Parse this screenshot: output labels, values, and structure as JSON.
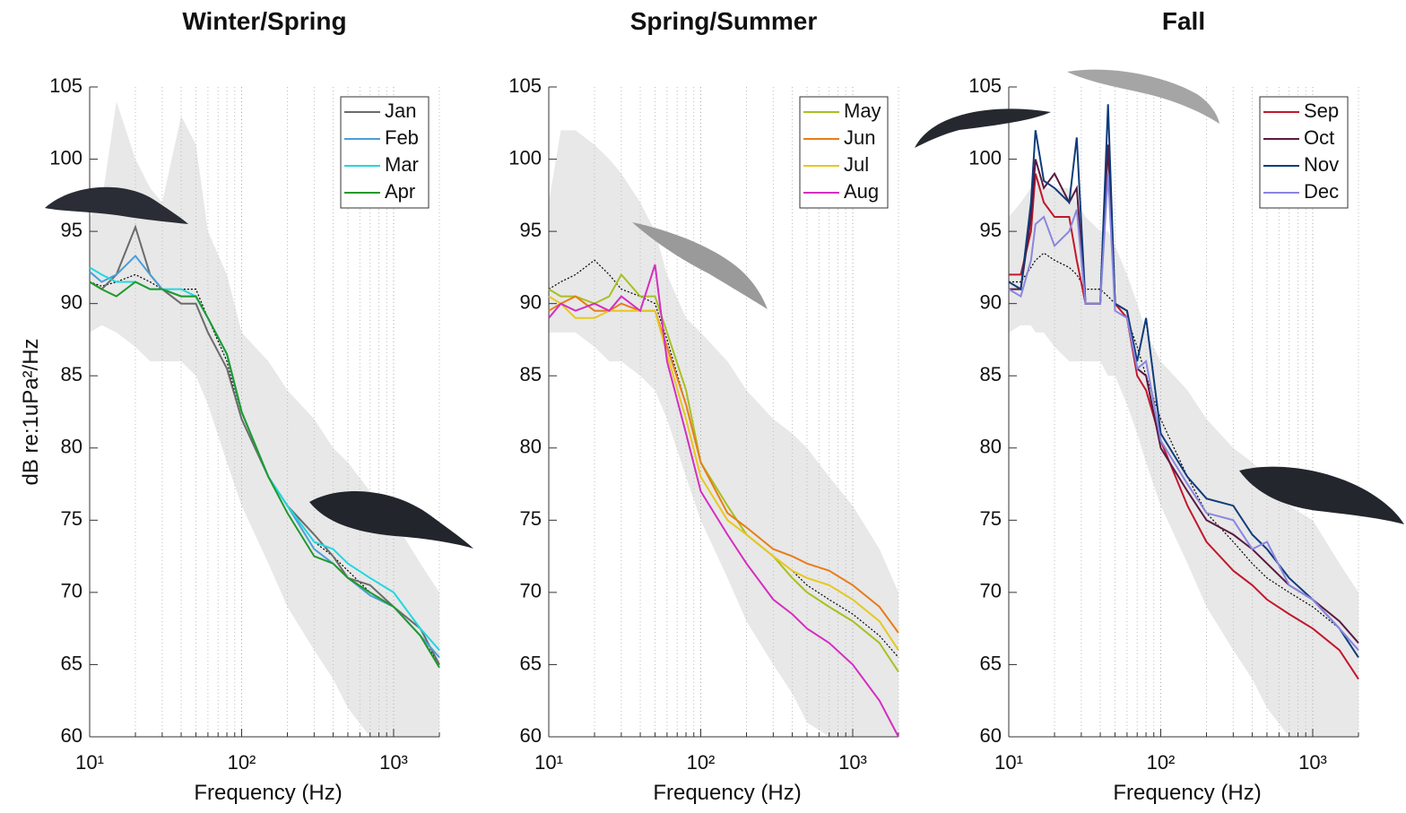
{
  "chart_data": [
    {
      "type": "line",
      "title": "Winter/Spring",
      "x_label": "Frequency (Hz)",
      "y_label": "dB re:1uPa²/Hz",
      "log_x": true,
      "grid": true,
      "legend": "upper right",
      "xlim": [
        10,
        2000
      ],
      "ylim": [
        60,
        105
      ],
      "xticks": [
        {
          "value": 10,
          "label": "10¹"
        },
        {
          "value": 100,
          "label": "10²"
        },
        {
          "value": 1000,
          "label": "10³"
        }
      ],
      "yticks": [
        60,
        65,
        70,
        75,
        80,
        85,
        90,
        95,
        100,
        105
      ],
      "x": [
        10,
        12,
        15,
        20,
        25,
        30,
        40,
        50,
        60,
        80,
        100,
        150,
        200,
        300,
        400,
        500,
        700,
        1000,
        1500,
        2000
      ],
      "band": {
        "color": "#e8e8e8",
        "upper": [
          96,
          97,
          104,
          100,
          98,
          97,
          103,
          101,
          95,
          92,
          88,
          86,
          84,
          82,
          80,
          79,
          77,
          75,
          72,
          70
        ],
        "lower": [
          88,
          88.5,
          88,
          87,
          86,
          86,
          86,
          85,
          83,
          79,
          76,
          72,
          69,
          66,
          64,
          62,
          60,
          60,
          60,
          60
        ]
      },
      "reference": {
        "color": "#000000",
        "values": [
          91.5,
          91.2,
          91.5,
          92,
          91.5,
          91,
          91,
          91,
          89,
          86,
          82,
          78,
          76,
          73.5,
          72.5,
          71.5,
          70,
          69,
          67,
          65
        ]
      },
      "series": [
        {
          "name": "Jan",
          "color": "#6b6b6b",
          "values": [
            91.5,
            91,
            92,
            95.3,
            92,
            91,
            90,
            90,
            88,
            85.5,
            82,
            78,
            76,
            74,
            72.5,
            71,
            70.5,
            69,
            67.5,
            65
          ]
        },
        {
          "name": "Feb",
          "color": "#4a9ed8",
          "values": [
            92.2,
            91.5,
            92,
            93.3,
            92,
            91,
            90.5,
            90.5,
            89,
            86.5,
            82.5,
            78,
            76,
            73,
            72,
            71,
            69.8,
            69,
            67,
            65.5
          ]
        },
        {
          "name": "Mar",
          "color": "#22d7e0",
          "values": [
            92.5,
            92,
            91.5,
            91.5,
            91,
            91,
            91,
            90.5,
            89,
            86.5,
            82.5,
            78,
            76,
            73.5,
            73,
            72,
            71,
            70,
            67.5,
            66
          ]
        },
        {
          "name": "Apr",
          "color": "#1f9a2a",
          "values": [
            91.5,
            91,
            90.5,
            91.5,
            91,
            91,
            90.5,
            90.5,
            89,
            86.5,
            82.5,
            78,
            75.5,
            72.5,
            72,
            71,
            70,
            69,
            67,
            64.8
          ]
        }
      ]
    },
    {
      "type": "line",
      "title": "Spring/Summer",
      "x_label": "Frequency (Hz)",
      "log_x": true,
      "grid": true,
      "legend": "upper right",
      "xlim": [
        10,
        2000
      ],
      "ylim": [
        60,
        105
      ],
      "xticks": [
        {
          "value": 10,
          "label": "10¹"
        },
        {
          "value": 100,
          "label": "10²"
        },
        {
          "value": 1000,
          "label": "10³"
        }
      ],
      "yticks": [
        60,
        65,
        70,
        75,
        80,
        85,
        90,
        95,
        100,
        105
      ],
      "x": [
        10,
        12,
        15,
        20,
        25,
        30,
        40,
        50,
        60,
        80,
        100,
        150,
        200,
        300,
        400,
        500,
        700,
        1000,
        1500,
        2000
      ],
      "band": {
        "color": "#e8e8e8",
        "upper": [
          97,
          102,
          102,
          101,
          100,
          99,
          97,
          95,
          92,
          89,
          88,
          86,
          84,
          82,
          81,
          80,
          78,
          76,
          73,
          70
        ],
        "lower": [
          88,
          88,
          88,
          87,
          86,
          86,
          85,
          84,
          82,
          78,
          75,
          71,
          68,
          65,
          63,
          61,
          60,
          60,
          60,
          60
        ]
      },
      "reference": {
        "color": "#000000",
        "values": [
          91,
          91.5,
          92,
          93,
          92,
          91,
          90.5,
          90,
          87.5,
          83,
          79,
          76,
          74,
          72.5,
          71.5,
          70.5,
          69.5,
          68.5,
          67,
          65.5
        ]
      },
      "series": [
        {
          "name": "May",
          "color": "#a8c020",
          "values": [
            91,
            90.5,
            90.5,
            90,
            90.5,
            92,
            90.5,
            90.5,
            88,
            84,
            79,
            76,
            74,
            72.5,
            71,
            70,
            69,
            68,
            66.5,
            64.5
          ]
        },
        {
          "name": "Jun",
          "color": "#e87d1a",
          "values": [
            89.5,
            90,
            90.5,
            89.5,
            89.5,
            90,
            89.5,
            89.5,
            87,
            83,
            79,
            75.5,
            74.5,
            73,
            72.5,
            72,
            71.5,
            70.5,
            69,
            67.2
          ]
        },
        {
          "name": "Jul",
          "color": "#e6c81e",
          "values": [
            90.5,
            90,
            89,
            89,
            89.5,
            89.5,
            89.5,
            89.5,
            86.5,
            82,
            78,
            75,
            74,
            72.5,
            71.5,
            71,
            70.5,
            69.5,
            68,
            66
          ]
        },
        {
          "name": "Aug",
          "color": "#d42ec0",
          "values": [
            89,
            90,
            89.5,
            90,
            89.5,
            90.5,
            89.5,
            92.7,
            86,
            81,
            77,
            74,
            72,
            69.5,
            68.5,
            67.5,
            66.5,
            65,
            62.5,
            60
          ]
        }
      ]
    },
    {
      "type": "line",
      "title": "Fall",
      "x_label": "Frequency (Hz)",
      "log_x": true,
      "grid": true,
      "legend": "upper right",
      "xlim": [
        10,
        2000
      ],
      "ylim": [
        60,
        105
      ],
      "xticks": [
        {
          "value": 10,
          "label": "10¹"
        },
        {
          "value": 100,
          "label": "10²"
        },
        {
          "value": 1000,
          "label": "10³"
        }
      ],
      "yticks": [
        60,
        65,
        70,
        75,
        80,
        85,
        90,
        95,
        100,
        105
      ],
      "x": [
        10,
        12,
        14,
        15,
        17,
        20,
        25,
        28,
        32,
        40,
        45,
        50,
        60,
        70,
        80,
        100,
        150,
        200,
        300,
        400,
        500,
        700,
        1000,
        1500,
        2000
      ],
      "band": {
        "color": "#e8e8e8",
        "upper": [
          96,
          97,
          98,
          99,
          98,
          98,
          98,
          97,
          96,
          95,
          95,
          94,
          92,
          90,
          88,
          86,
          84,
          82,
          80,
          79,
          78,
          76,
          75,
          72,
          70
        ],
        "lower": [
          88,
          88.5,
          88.5,
          88,
          88,
          87,
          86,
          86,
          86,
          86,
          85,
          85,
          83,
          81,
          79,
          76,
          72,
          69,
          66,
          64,
          62,
          60,
          60,
          60,
          60
        ]
      },
      "reference": {
        "color": "#000000",
        "values": [
          91.5,
          91.5,
          92.5,
          93,
          93.5,
          93,
          92.5,
          92,
          91,
          91,
          90.5,
          90,
          89,
          87,
          85,
          82,
          78,
          75.5,
          73.5,
          72,
          71,
          70,
          69,
          67.5,
          65.5
        ]
      },
      "series": [
        {
          "name": "Sep",
          "color": "#c0182c",
          "values": [
            92,
            92,
            95,
            99,
            97,
            96,
            96,
            93,
            90,
            90,
            101,
            90,
            89,
            85,
            84,
            80.5,
            76,
            73.5,
            71.5,
            70.5,
            69.5,
            68.5,
            67.5,
            66,
            64
          ]
        },
        {
          "name": "Oct",
          "color": "#5a1a40",
          "values": [
            91,
            91,
            96,
            100,
            98,
            99,
            97,
            98,
            90,
            90,
            101,
            90,
            89.5,
            85.5,
            85,
            80,
            77,
            75,
            74,
            73,
            72,
            70.5,
            69.5,
            68,
            66.5
          ]
        },
        {
          "name": "Nov",
          "color": "#0e3c7a",
          "values": [
            91.5,
            91,
            97,
            102,
            98.5,
            98,
            97,
            101.5,
            90,
            90,
            103.8,
            90,
            89.5,
            86,
            89,
            81,
            78,
            76.5,
            76,
            74,
            73,
            71,
            69.5,
            67.5,
            65.5
          ]
        },
        {
          "name": "Dec",
          "color": "#8a86e0",
          "values": [
            91,
            90.5,
            93,
            95.5,
            96,
            94,
            95,
            96.5,
            90,
            90,
            99,
            89.5,
            89,
            85.5,
            86,
            80.5,
            77.5,
            75.5,
            75,
            73,
            73.5,
            70.5,
            69.5,
            67.5,
            66
          ]
        }
      ]
    }
  ]
}
